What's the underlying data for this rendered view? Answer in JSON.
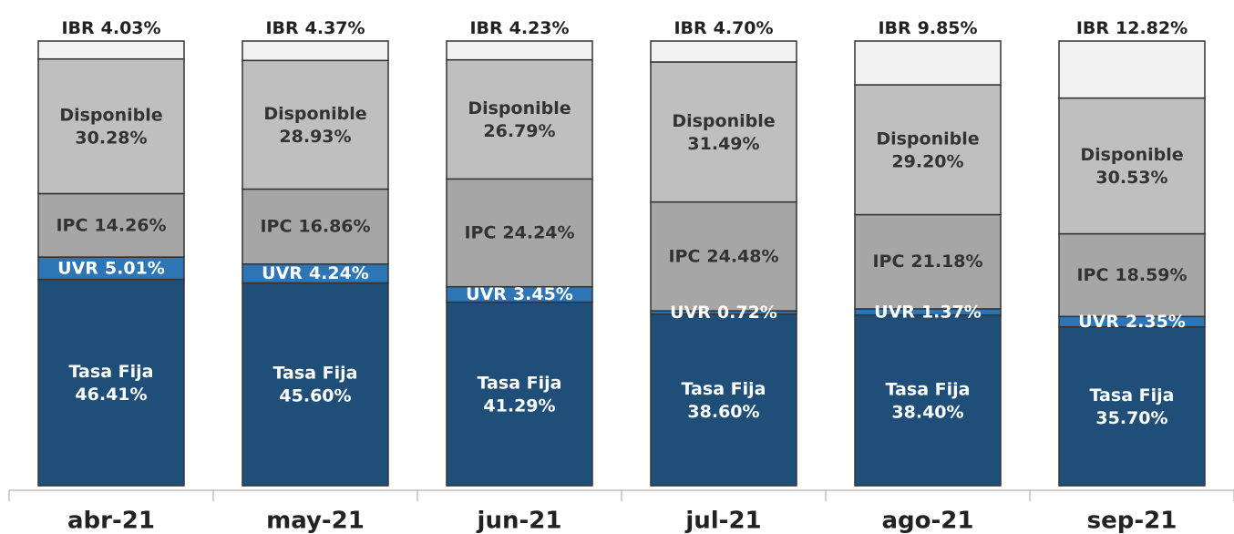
{
  "chart_data": {
    "type": "stacked-bar",
    "categories": [
      "abr-21",
      "may-21",
      "jun-21",
      "jul-21",
      "ago-21",
      "sep-21"
    ],
    "ylim": [
      0,
      100
    ],
    "series": [
      {
        "name": "Tasa Fija",
        "color": "#1f4e79",
        "values": [
          46.41,
          45.6,
          41.29,
          38.6,
          38.4,
          35.7
        ],
        "value_labels": [
          "46.41%",
          "45.60%",
          "41.29%",
          "38.60%",
          "38.40%",
          "35.70%"
        ]
      },
      {
        "name": "UVR",
        "color": "#2e75b6",
        "values": [
          5.01,
          4.24,
          3.45,
          0.72,
          1.37,
          2.35
        ],
        "value_labels": [
          "5.01%",
          "4.24%",
          "3.45%",
          "0.72%",
          "1.37%",
          "2.35%"
        ]
      },
      {
        "name": "IPC",
        "color": "#a6a6a6",
        "values": [
          14.26,
          16.86,
          24.24,
          24.48,
          21.18,
          18.59
        ],
        "value_labels": [
          "14.26%",
          "16.86%",
          "24.24%",
          "24.48%",
          "21.18%",
          "18.59%"
        ]
      },
      {
        "name": "Disponible",
        "color": "#bfbfbf",
        "values": [
          30.28,
          28.93,
          26.79,
          31.49,
          29.2,
          30.53
        ],
        "value_labels": [
          "30.28%",
          "28.93%",
          "26.79%",
          "31.49%",
          "29.20%",
          "30.53%"
        ]
      },
      {
        "name": "IBR",
        "color": "#f2f2f2",
        "values": [
          4.03,
          4.37,
          4.23,
          4.7,
          9.85,
          12.82
        ],
        "value_labels": [
          "4.03%",
          "4.37%",
          "4.23%",
          "4.70%",
          "9.85%",
          "12.82%"
        ]
      }
    ]
  }
}
